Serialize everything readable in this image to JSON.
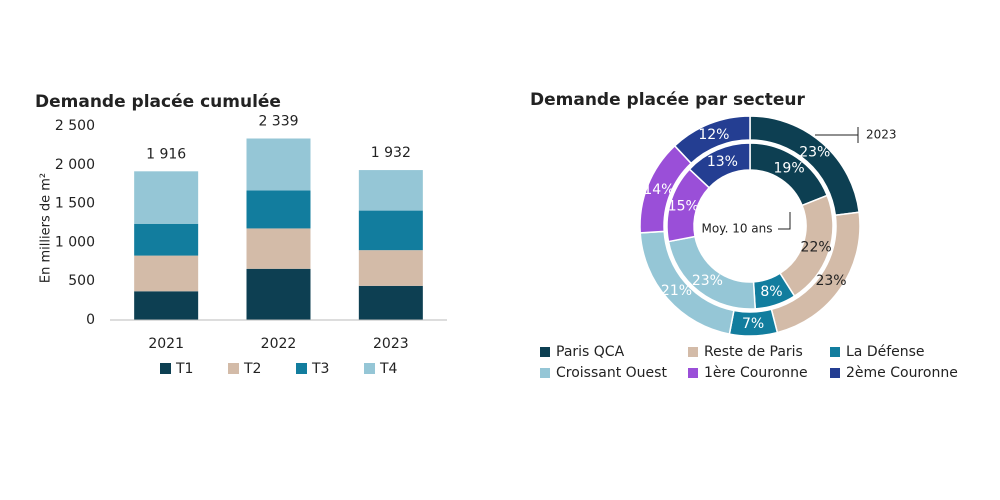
{
  "chart_data": [
    {
      "type": "stacked-bar",
      "title": "Demande placée cumulée",
      "y_label": "En milliers de m²",
      "categories": [
        "2021",
        "2022",
        "2023"
      ],
      "series": [
        {
          "name": "T1",
          "color": "#0d3f52",
          "values": [
            370,
            660,
            440
          ]
        },
        {
          "name": "T2",
          "color": "#d3bba8",
          "values": [
            460,
            520,
            460
          ]
        },
        {
          "name": "T3",
          "color": "#127d9e",
          "values": [
            410,
            490,
            510
          ]
        },
        {
          "name": "T4",
          "color": "#95c6d6",
          "values": [
            676,
            669,
            522
          ]
        }
      ],
      "totals": [
        1916,
        2339,
        1932
      ],
      "total_labels": [
        "1 916",
        "2 339",
        "1 932"
      ],
      "ylim": [
        0,
        2500
      ],
      "yticks": [
        0,
        500,
        {
          "value": 1000,
          "label": "1 000"
        },
        {
          "value": 1500,
          "label": "1 500"
        },
        {
          "value": 2000,
          "label": "2 000"
        },
        {
          "value": 2500,
          "label": "2 500"
        }
      ]
    },
    {
      "type": "donut",
      "title": "Demande placée par secteur",
      "categories": [
        "Paris QCA",
        "Reste de Paris",
        "La Défense",
        "Croissant Ouest",
        "1ère Couronne",
        "2ème Couronne"
      ],
      "colors": [
        "#0d3f52",
        "#d3bba8",
        "#127d9e",
        "#95c6d6",
        "#9a4fd8",
        "#243e92"
      ],
      "series": [
        {
          "name": "2023",
          "values": [
            23,
            23,
            7,
            21,
            14,
            12
          ],
          "value_labels": [
            "23%",
            "23%",
            "7%",
            "21%",
            "14%",
            "12%"
          ]
        },
        {
          "name": "Moy. 10 ans",
          "values": [
            19,
            22,
            8,
            23,
            15,
            13
          ],
          "value_labels": [
            "19%",
            "22%",
            "8%",
            "23%",
            "15%",
            "13%"
          ]
        }
      ]
    }
  ]
}
